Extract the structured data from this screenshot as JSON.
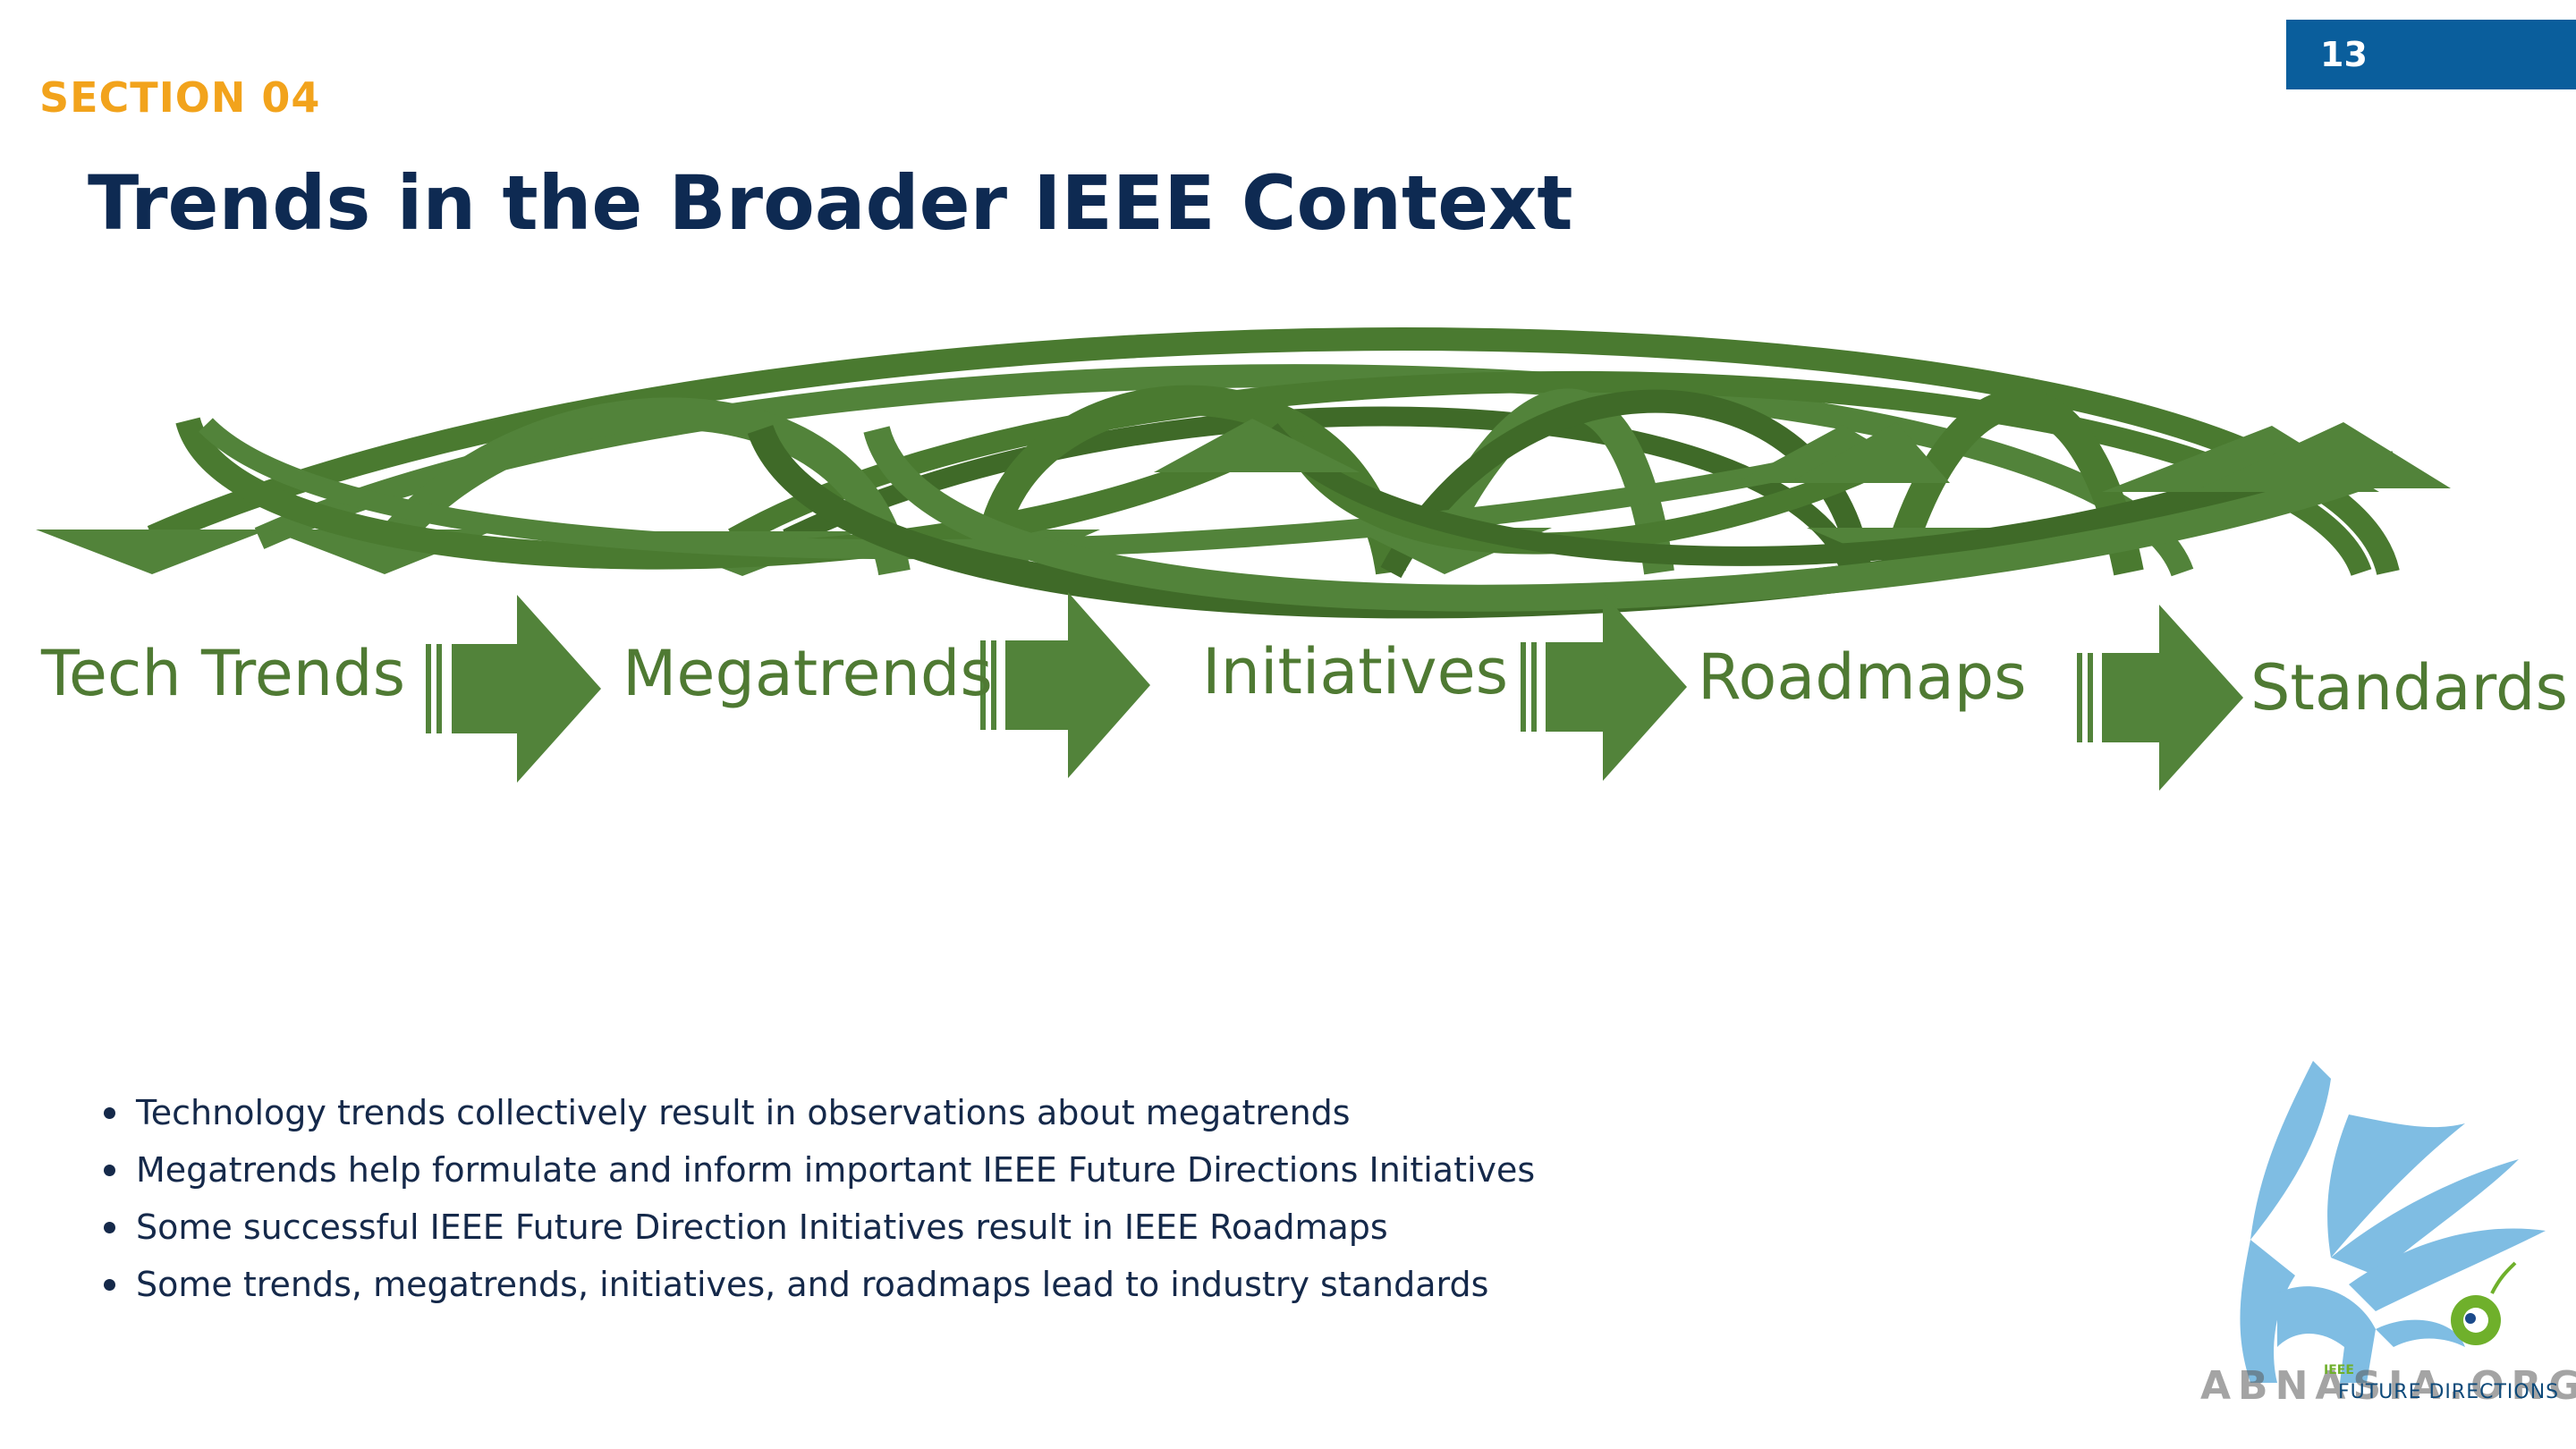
{
  "page_number": "13",
  "section_label": "SECTION 04",
  "title": "Trends in the Broader IEEE Context",
  "stages": [
    "Tech Trends",
    "Megatrends",
    "Initiatives",
    "Roadmaps",
    "Standards"
  ],
  "bullets": [
    "Technology trends collectively result in observations about megatrends",
    "Megatrends help formulate and inform important IEEE Future Directions Initiatives",
    "Some successful IEEE Future Direction Initiatives result in IEEE Roadmaps",
    "Some trends, megatrends, initiatives, and roadmaps lead to industry standards"
  ],
  "logo": {
    "ieee": "IEEE",
    "text": "FUTURE DIRECTIONS"
  },
  "watermark": "ABNASIA.ORG",
  "colors": {
    "arrow_green": "#52833a",
    "arrow_green_dark": "#3f6a28",
    "title_navy": "#0e2a52",
    "section_orange": "#f2a31c",
    "badge_blue": "#0a5e9c"
  }
}
